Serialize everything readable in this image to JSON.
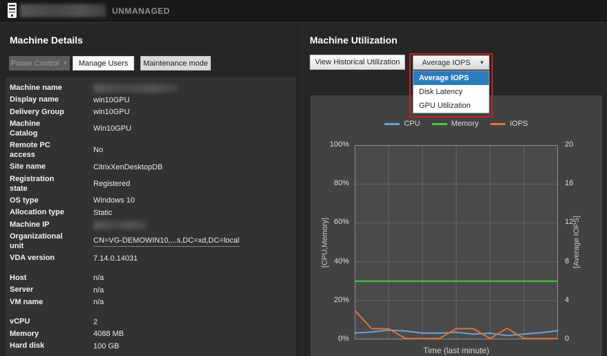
{
  "topbar": {
    "status": "UNMANAGED",
    "machine_name_redacted": true
  },
  "machine_details": {
    "title": "Machine Details",
    "buttons": {
      "power_control": "Power Control",
      "manage_users": "Manage Users",
      "maintenance_mode": "Maintenance mode"
    },
    "rows": [
      {
        "label": "Machine name",
        "value": "",
        "redacted": true,
        "redact_width": 122
      },
      {
        "label": "Display name",
        "value": "win10GPU"
      },
      {
        "label": "Delivery Group",
        "value": "win10GPU"
      },
      {
        "label": "Machine\nCatalog",
        "value": "Win10GPU",
        "multiline": true
      },
      {
        "label": "Remote PC\naccess",
        "value": "No",
        "multiline": true
      },
      {
        "label": "Site name",
        "value": "CitrixXenDesktopDB"
      },
      {
        "label": "Registration\nstate",
        "value": "Registered",
        "multiline": true
      },
      {
        "label": "OS type",
        "value": "Windows 10"
      },
      {
        "label": "Allocation type",
        "value": "Static"
      },
      {
        "label": "Machine IP",
        "value": "",
        "redacted": true,
        "redact_width": 78
      },
      {
        "label": "Organizational\nunit",
        "value": "CN=VG-DEMOWIN10,...s,DC=xd,DC=local",
        "multiline": true,
        "underlined": true
      },
      {
        "label": "VDA version",
        "value": "7.14.0.14031"
      },
      {
        "label": "Host",
        "value": "n/a",
        "group_gap": true
      },
      {
        "label": "Server",
        "value": "n/a"
      },
      {
        "label": "VM name",
        "value": "n/a"
      },
      {
        "label": "vCPU",
        "value": "2",
        "group_gap": true
      },
      {
        "label": "Memory",
        "value": "4088 MB"
      },
      {
        "label": "Hard disk",
        "value": "100 GB"
      }
    ]
  },
  "machine_utilization": {
    "title": "Machine Utilization",
    "view_historical_button": "View Historical Utilization",
    "dropdown": {
      "selected": "Average IOPS",
      "selected_index": 0,
      "options": [
        "Average IOPS",
        "Disk Latency",
        "GPU Utilization"
      ],
      "annotation_color": "#cf1d1d"
    }
  },
  "chart_data": {
    "type": "line",
    "xlabel": "Time (last minute)",
    "x_points": [
      0,
      1,
      2,
      3,
      4,
      5,
      6,
      7,
      8,
      9,
      10,
      11,
      12
    ],
    "left_axis": {
      "label": "[CPU,Memory]",
      "min": 0,
      "max": 100,
      "ticks": [
        "100%",
        "80%",
        "60%",
        "40%",
        "20%",
        "0%"
      ]
    },
    "right_axis": {
      "label": "[Average IOPS]",
      "min": 0,
      "max": 20,
      "ticks": [
        "20",
        "16",
        "12",
        "8",
        "4",
        "0"
      ]
    },
    "grid": {
      "x_divisions": 6,
      "y_divisions": 5
    },
    "legend_position": "top",
    "series": [
      {
        "name": "CPU",
        "axis": "left",
        "unit": "%",
        "color": "#6ba3d6",
        "values": [
          3.3,
          3.8,
          4.8,
          4.3,
          3.3,
          3.2,
          3.7,
          2.7,
          3.2,
          2.0,
          2.7,
          3.5,
          4.5
        ]
      },
      {
        "name": "Memory",
        "axis": "left",
        "unit": "%",
        "color": "#3ecc3e",
        "values": [
          30,
          30,
          30,
          30,
          30,
          30,
          30,
          30,
          30,
          30,
          30,
          30,
          30
        ]
      },
      {
        "name": "IOPS",
        "axis": "right",
        "unit": "IOPS",
        "color": "#e2703d",
        "values": [
          3.0,
          1.1,
          1.1,
          0.07,
          0.07,
          0.07,
          1.1,
          1.1,
          0.07,
          1.15,
          0.07,
          0.07,
          0.07
        ]
      }
    ]
  }
}
